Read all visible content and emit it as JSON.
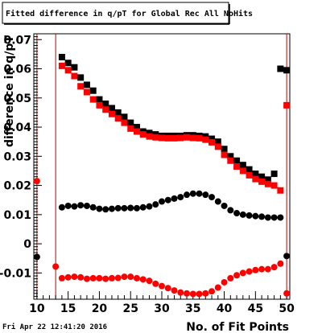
{
  "window": {
    "title": "Fitted difference in q/pT for Global Rec All NoHits"
  },
  "footer": {
    "timestamp": "Fri Apr 22 12:41:20 2016"
  },
  "chart_data": {
    "type": "scatter",
    "title": "Fitted difference in q/pT for Global Rec All NoHits",
    "xlabel": "No. of Fit Points",
    "ylabel": "difference in q/pT",
    "xlim": [
      9.5,
      50.5
    ],
    "ylim": [
      -0.019,
      0.072
    ],
    "x_ticks": [
      10,
      15,
      20,
      25,
      30,
      35,
      40,
      45,
      50
    ],
    "x_tick_labels": [
      "10",
      "15",
      "20",
      "25",
      "30",
      "35",
      "40",
      "45",
      "50"
    ],
    "y_ticks": [
      -0.01,
      0,
      0.01,
      0.02,
      0.03,
      0.04,
      0.05,
      0.06,
      0.07
    ],
    "y_tick_labels": [
      "-0.01",
      "0",
      "0.01",
      "0.02",
      "0.03",
      "0.04",
      "0.05",
      "0.06",
      "0.07"
    ],
    "vlines": [
      10,
      13,
      50
    ],
    "colors": {
      "black": "#000000",
      "red": "#ff0000",
      "vline": "#cc0000"
    },
    "series": [
      {
        "marker": "square",
        "color": "black",
        "x": [
          14,
          15,
          16,
          17,
          18,
          19,
          20,
          21,
          22,
          23,
          24,
          25,
          26,
          27,
          28,
          29,
          30,
          31,
          32,
          33,
          34,
          35,
          36,
          37,
          38,
          39,
          40,
          41,
          42,
          43,
          44,
          45,
          46,
          47,
          48,
          49,
          50
        ],
        "y": [
          0.064,
          0.062,
          0.0605,
          0.057,
          0.0545,
          0.0525,
          0.0495,
          0.048,
          0.0465,
          0.045,
          0.0435,
          0.0415,
          0.04,
          0.0385,
          0.038,
          0.0375,
          0.037,
          0.037,
          0.037,
          0.037,
          0.0372,
          0.0372,
          0.037,
          0.0368,
          0.036,
          0.035,
          0.0325,
          0.03,
          0.0285,
          0.027,
          0.0255,
          0.024,
          0.023,
          0.022,
          0.024,
          0.06,
          0.0595
        ]
      },
      {
        "marker": "square",
        "color": "red",
        "x": [
          14,
          15,
          16,
          17,
          18,
          19,
          20,
          21,
          22,
          23,
          24,
          25,
          26,
          27,
          28,
          29,
          30,
          31,
          32,
          33,
          34,
          35,
          36,
          37,
          38,
          39,
          40,
          41,
          42,
          43,
          44,
          45,
          46,
          47,
          48,
          49,
          50
        ],
        "y": [
          0.061,
          0.0595,
          0.0575,
          0.054,
          0.052,
          0.0495,
          0.0475,
          0.046,
          0.0445,
          0.043,
          0.0415,
          0.0395,
          0.0385,
          0.0375,
          0.0368,
          0.0365,
          0.0363,
          0.0362,
          0.0362,
          0.0363,
          0.0365,
          0.0363,
          0.0362,
          0.0357,
          0.0348,
          0.0333,
          0.0305,
          0.0285,
          0.0265,
          0.025,
          0.0235,
          0.0222,
          0.0213,
          0.0205,
          0.02,
          0.0183,
          0.0475
        ]
      },
      {
        "marker": "circle",
        "color": "black",
        "x": [
          10,
          14,
          15,
          16,
          17,
          18,
          19,
          20,
          21,
          22,
          23,
          24,
          25,
          26,
          27,
          28,
          29,
          30,
          31,
          32,
          33,
          34,
          35,
          36,
          37,
          38,
          39,
          40,
          41,
          42,
          43,
          44,
          45,
          46,
          47,
          48,
          49,
          50
        ],
        "y": [
          -0.0045,
          0.0125,
          0.013,
          0.0128,
          0.0132,
          0.013,
          0.0125,
          0.012,
          0.0118,
          0.012,
          0.0122,
          0.0122,
          0.0123,
          0.0122,
          0.0125,
          0.0128,
          0.0135,
          0.0145,
          0.015,
          0.0155,
          0.016,
          0.0168,
          0.0172,
          0.0172,
          0.0168,
          0.016,
          0.0145,
          0.013,
          0.0115,
          0.0105,
          0.01,
          0.0097,
          0.0095,
          0.0093,
          0.009,
          0.009,
          0.009,
          -0.0042
        ]
      },
      {
        "marker": "circle",
        "color": "red",
        "x": [
          10,
          13,
          14,
          15,
          16,
          17,
          18,
          19,
          20,
          21,
          22,
          23,
          24,
          25,
          26,
          27,
          28,
          29,
          30,
          31,
          32,
          33,
          34,
          35,
          36,
          37,
          38,
          39,
          40,
          41,
          42,
          43,
          44,
          45,
          46,
          47,
          48,
          49,
          50
        ],
        "y": [
          0.0215,
          -0.0078,
          -0.0118,
          -0.0115,
          -0.0113,
          -0.0115,
          -0.012,
          -0.0118,
          -0.0118,
          -0.012,
          -0.0118,
          -0.0117,
          -0.0113,
          -0.0113,
          -0.0118,
          -0.0122,
          -0.0127,
          -0.0137,
          -0.0145,
          -0.0152,
          -0.016,
          -0.0167,
          -0.017,
          -0.0172,
          -0.0172,
          -0.017,
          -0.0163,
          -0.015,
          -0.0132,
          -0.0118,
          -0.0108,
          -0.01,
          -0.0095,
          -0.009,
          -0.0087,
          -0.0087,
          -0.008,
          -0.0068,
          -0.017
        ]
      }
    ]
  }
}
